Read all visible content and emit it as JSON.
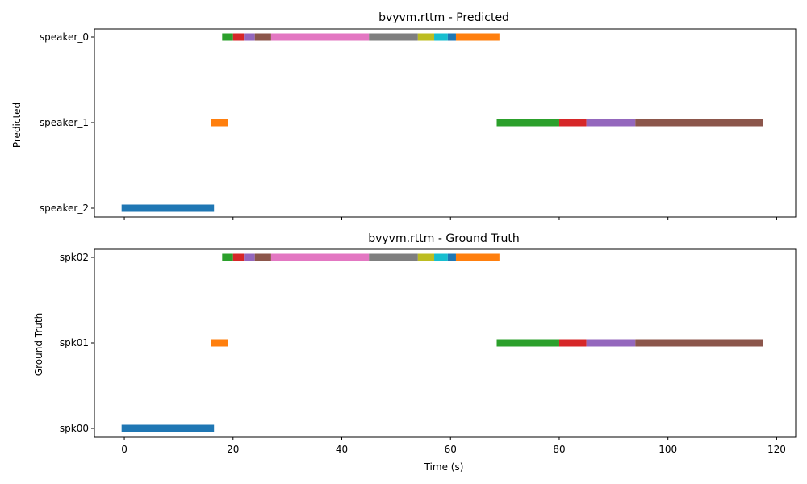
{
  "chart_data": [
    {
      "type": "bar",
      "title": "bvyvm.rttm - Predicted",
      "ylabel": "Predicted",
      "xlabel": "",
      "xlim": [
        -5.5,
        123.5
      ],
      "xticks": [
        0,
        20,
        40,
        60,
        80,
        100,
        120
      ],
      "yticks": [
        "speaker_0",
        "speaker_1",
        "speaker_2"
      ],
      "segments": [
        {
          "speaker": "speaker_2",
          "start": -0.5,
          "end": 16.5,
          "color": "#1f77b4"
        },
        {
          "speaker": "speaker_1",
          "start": 16.0,
          "end": 19.0,
          "color": "#ff7f0e"
        },
        {
          "speaker": "speaker_0",
          "start": 18.0,
          "end": 20.0,
          "color": "#2ca02c"
        },
        {
          "speaker": "speaker_0",
          "start": 20.0,
          "end": 22.0,
          "color": "#d62728"
        },
        {
          "speaker": "speaker_0",
          "start": 22.0,
          "end": 24.0,
          "color": "#9467bd"
        },
        {
          "speaker": "speaker_0",
          "start": 24.0,
          "end": 27.0,
          "color": "#8c564b"
        },
        {
          "speaker": "speaker_0",
          "start": 27.0,
          "end": 45.0,
          "color": "#e377c2"
        },
        {
          "speaker": "speaker_0",
          "start": 45.0,
          "end": 54.0,
          "color": "#7f7f7f"
        },
        {
          "speaker": "speaker_0",
          "start": 54.0,
          "end": 57.0,
          "color": "#bcbd22"
        },
        {
          "speaker": "speaker_0",
          "start": 57.0,
          "end": 59.5,
          "color": "#17becf"
        },
        {
          "speaker": "speaker_0",
          "start": 59.5,
          "end": 61.0,
          "color": "#1f77b4"
        },
        {
          "speaker": "speaker_0",
          "start": 61.0,
          "end": 69.0,
          "color": "#ff7f0e"
        },
        {
          "speaker": "speaker_1",
          "start": 68.5,
          "end": 80.0,
          "color": "#2ca02c"
        },
        {
          "speaker": "speaker_1",
          "start": 80.0,
          "end": 85.0,
          "color": "#d62728"
        },
        {
          "speaker": "speaker_1",
          "start": 85.0,
          "end": 94.0,
          "color": "#9467bd"
        },
        {
          "speaker": "speaker_1",
          "start": 94.0,
          "end": 117.5,
          "color": "#8c564b"
        }
      ]
    },
    {
      "type": "bar",
      "title": "bvyvm.rttm - Ground Truth",
      "ylabel": "Ground Truth",
      "xlabel": "Time (s)",
      "xlim": [
        -5.5,
        123.5
      ],
      "xticks": [
        0,
        20,
        40,
        60,
        80,
        100,
        120
      ],
      "yticks": [
        "spk02",
        "spk01",
        "spk00"
      ],
      "segments": [
        {
          "speaker": "spk00",
          "start": -0.5,
          "end": 16.5,
          "color": "#1f77b4"
        },
        {
          "speaker": "spk01",
          "start": 16.0,
          "end": 19.0,
          "color": "#ff7f0e"
        },
        {
          "speaker": "spk02",
          "start": 18.0,
          "end": 20.0,
          "color": "#2ca02c"
        },
        {
          "speaker": "spk02",
          "start": 20.0,
          "end": 22.0,
          "color": "#d62728"
        },
        {
          "speaker": "spk02",
          "start": 22.0,
          "end": 24.0,
          "color": "#9467bd"
        },
        {
          "speaker": "spk02",
          "start": 24.0,
          "end": 27.0,
          "color": "#8c564b"
        },
        {
          "speaker": "spk02",
          "start": 27.0,
          "end": 45.0,
          "color": "#e377c2"
        },
        {
          "speaker": "spk02",
          "start": 45.0,
          "end": 54.0,
          "color": "#7f7f7f"
        },
        {
          "speaker": "spk02",
          "start": 54.0,
          "end": 57.0,
          "color": "#bcbd22"
        },
        {
          "speaker": "spk02",
          "start": 57.0,
          "end": 59.5,
          "color": "#17becf"
        },
        {
          "speaker": "spk02",
          "start": 59.5,
          "end": 61.0,
          "color": "#1f77b4"
        },
        {
          "speaker": "spk02",
          "start": 61.0,
          "end": 69.0,
          "color": "#ff7f0e"
        },
        {
          "speaker": "spk01",
          "start": 68.5,
          "end": 80.0,
          "color": "#2ca02c"
        },
        {
          "speaker": "spk01",
          "start": 80.0,
          "end": 85.0,
          "color": "#d62728"
        },
        {
          "speaker": "spk01",
          "start": 85.0,
          "end": 94.0,
          "color": "#9467bd"
        },
        {
          "speaker": "spk01",
          "start": 94.0,
          "end": 117.5,
          "color": "#8c564b"
        }
      ]
    }
  ]
}
